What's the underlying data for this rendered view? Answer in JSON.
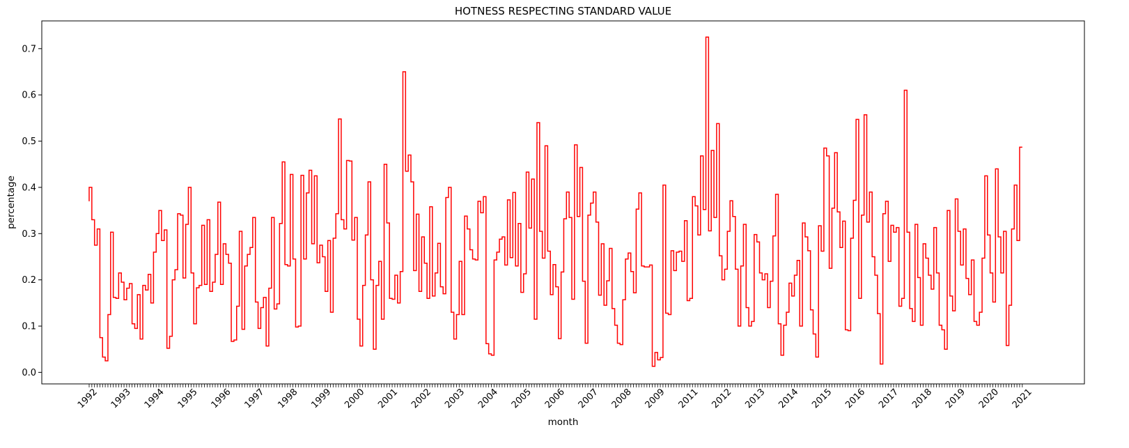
{
  "chart_data": {
    "type": "line",
    "drawstyle": "steps",
    "title": "HOTNESS RESPECTING STANDARD VALUE",
    "xlabel": "month",
    "ylabel": "percentage",
    "ylim": [
      -0.025,
      0.76
    ],
    "yticks": [
      0.0,
      0.1,
      0.2,
      0.3,
      0.4,
      0.5,
      0.6,
      0.7
    ],
    "ytick_labels": [
      "0.0",
      "0.1",
      "0.2",
      "0.3",
      "0.4",
      "0.5",
      "0.6",
      "0.7"
    ],
    "xtick_labels": [
      "1992",
      "1993",
      "1994",
      "1995",
      "1996",
      "1997",
      "1998",
      "1999",
      "2000",
      "2001",
      "2002",
      "2003",
      "2004",
      "2005",
      "2006",
      "2007",
      "2008",
      "2009",
      "2011",
      "2012",
      "2013",
      "2014",
      "2015",
      "2016",
      "2017",
      "2018",
      "2019",
      "2020",
      "2021"
    ],
    "grid": false,
    "series": [
      {
        "color": "#ff0000",
        "values": [
          0.37,
          0.4,
          0.33,
          0.275,
          0.31,
          0.075,
          0.033,
          0.025,
          0.125,
          0.303,
          0.162,
          0.16,
          0.215,
          0.195,
          0.157,
          0.182,
          0.192,
          0.105,
          0.095,
          0.168,
          0.072,
          0.188,
          0.178,
          0.212,
          0.15,
          0.26,
          0.3,
          0.35,
          0.285,
          0.308,
          0.052,
          0.078,
          0.2,
          0.222,
          0.343,
          0.34,
          0.204,
          0.32,
          0.4,
          0.215,
          0.105,
          0.183,
          0.188,
          0.318,
          0.19,
          0.33,
          0.175,
          0.195,
          0.255,
          0.368,
          0.19,
          0.278,
          0.255,
          0.236,
          0.067,
          0.07,
          0.143,
          0.305,
          0.093,
          0.23,
          0.255,
          0.27,
          0.335,
          0.152,
          0.095,
          0.14,
          0.162,
          0.057,
          0.182,
          0.335,
          0.137,
          0.148,
          0.322,
          0.455,
          0.233,
          0.23,
          0.428,
          0.245,
          0.098,
          0.1,
          0.426,
          0.245,
          0.388,
          0.437,
          0.278,
          0.425,
          0.237,
          0.275,
          0.25,
          0.175,
          0.285,
          0.13,
          0.29,
          0.343,
          0.548,
          0.33,
          0.31,
          0.458,
          0.457,
          0.286,
          0.335,
          0.115,
          0.057,
          0.188,
          0.297,
          0.412,
          0.2,
          0.05,
          0.188,
          0.24,
          0.115,
          0.45,
          0.323,
          0.16,
          0.158,
          0.21,
          0.15,
          0.218,
          0.65,
          0.435,
          0.47,
          0.412,
          0.22,
          0.342,
          0.175,
          0.293,
          0.236,
          0.16,
          0.358,
          0.165,
          0.215,
          0.279,
          0.185,
          0.17,
          0.378,
          0.4,
          0.13,
          0.072,
          0.125,
          0.24,
          0.125,
          0.338,
          0.31,
          0.265,
          0.245,
          0.243,
          0.37,
          0.345,
          0.38,
          0.062,
          0.04,
          0.037,
          0.243,
          0.26,
          0.288,
          0.293,
          0.232,
          0.373,
          0.248,
          0.389,
          0.23,
          0.322,
          0.173,
          0.213,
          0.433,
          0.312,
          0.418,
          0.115,
          0.54,
          0.305,
          0.247,
          0.49,
          0.262,
          0.168,
          0.233,
          0.185,
          0.073,
          0.217,
          0.332,
          0.39,
          0.335,
          0.158,
          0.492,
          0.337,
          0.443,
          0.197,
          0.063,
          0.34,
          0.366,
          0.39,
          0.325,
          0.167,
          0.278,
          0.145,
          0.198,
          0.268,
          0.138,
          0.102,
          0.063,
          0.06,
          0.157,
          0.245,
          0.258,
          0.218,
          0.172,
          0.353,
          0.388,
          0.23,
          0.228,
          0.228,
          0.232,
          0.013,
          0.043,
          0.027,
          0.032,
          0.405,
          0.128,
          0.125,
          0.263,
          0.22,
          0.26,
          0.262,
          0.24,
          0.328,
          0.155,
          0.16,
          0.38,
          0.36,
          0.297,
          0.468,
          0.352,
          0.725,
          0.306,
          0.48,
          0.335,
          0.538,
          0.252,
          0.2,
          0.223,
          0.305,
          0.371,
          0.337,
          0.223,
          0.1,
          0.23,
          0.32,
          0.14,
          0.1,
          0.11,
          0.298,
          0.282,
          0.215,
          0.2,
          0.213,
          0.14,
          0.197,
          0.295,
          0.385,
          0.105,
          0.037,
          0.102,
          0.13,
          0.193,
          0.165,
          0.21,
          0.242,
          0.1,
          0.323,
          0.293,
          0.263,
          0.135,
          0.083,
          0.033,
          0.317,
          0.262,
          0.485,
          0.468,
          0.225,
          0.355,
          0.475,
          0.347,
          0.27,
          0.327,
          0.092,
          0.09,
          0.29,
          0.372,
          0.547,
          0.16,
          0.34,
          0.557,
          0.325,
          0.39,
          0.25,
          0.21,
          0.127,
          0.018,
          0.343,
          0.37,
          0.24,
          0.318,
          0.303,
          0.313,
          0.143,
          0.16,
          0.61,
          0.303,
          0.138,
          0.11,
          0.32,
          0.205,
          0.102,
          0.278,
          0.247,
          0.21,
          0.18,
          0.313,
          0.215,
          0.102,
          0.092,
          0.05,
          0.35,
          0.165,
          0.133,
          0.375,
          0.305,
          0.232,
          0.31,
          0.203,
          0.168,
          0.243,
          0.11,
          0.102,
          0.13,
          0.247,
          0.425,
          0.297,
          0.215,
          0.152,
          0.44,
          0.293,
          0.215,
          0.305,
          0.058,
          0.145,
          0.31,
          0.405,
          0.285,
          0.487
        ]
      }
    ]
  }
}
